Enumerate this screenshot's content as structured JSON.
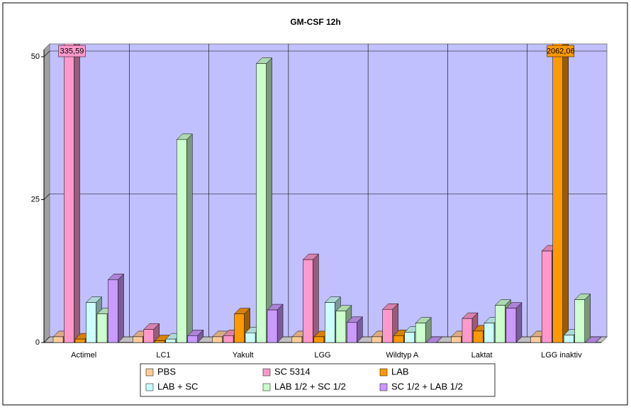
{
  "chart_data": {
    "type": "bar3d",
    "title": "GM-CSF 12h",
    "categories": [
      "Actimel",
      "LC1",
      "Yakult",
      "LGG",
      "Wildtyp A",
      "Laktat",
      "LGG inaktiv"
    ],
    "series": [
      {
        "name": "PBS",
        "color": "#ffcc99",
        "values": [
          1,
          1,
          1,
          1,
          1,
          1,
          1
        ]
      },
      {
        "name": "SC 5314",
        "color": "#ff99cc",
        "values": [
          335.59,
          2.3,
          1.2,
          14.5,
          5.8,
          4.2,
          16
        ],
        "value_labels": [
          "335,59",
          null,
          null,
          null,
          null,
          null,
          null
        ]
      },
      {
        "name": "LAB",
        "color": "#ff9900",
        "values": [
          0.6,
          0.3,
          5,
          1,
          1.2,
          2,
          2062.06
        ],
        "value_labels": [
          null,
          null,
          null,
          null,
          null,
          null,
          "2062,06"
        ]
      },
      {
        "name": "LAB + SC",
        "color": "#ccffff",
        "values": [
          7,
          0.6,
          1.7,
          7,
          1.8,
          3.4,
          1.3
        ]
      },
      {
        "name": "LAB 1/2 + SC 1/2",
        "color": "#ccffcc",
        "values": [
          5,
          35.5,
          48.8,
          5.5,
          3.4,
          6.5,
          7.5
        ]
      },
      {
        "name": "SC 1/2 + LAB 1/2",
        "color": "#cc99ff",
        "values": [
          11,
          1.2,
          5.7,
          3.5,
          0,
          6,
          0
        ]
      }
    ],
    "ylim": [
      0,
      50
    ],
    "yticks": [
      0,
      25,
      50
    ],
    "grid": true,
    "legend": "bottom"
  }
}
